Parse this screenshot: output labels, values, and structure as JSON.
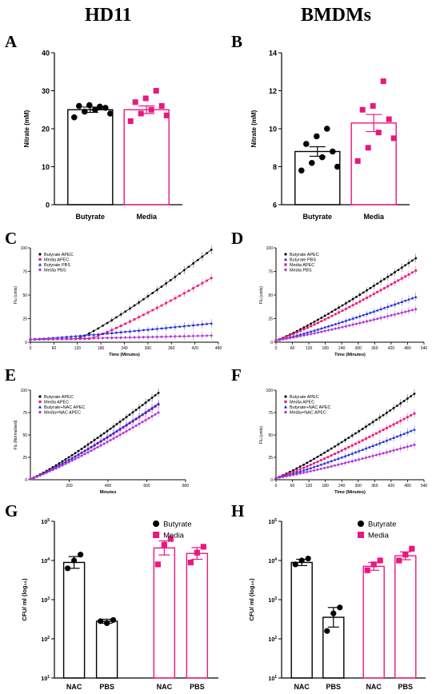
{
  "titles": {
    "left": "HD11",
    "right": "BMDMs"
  },
  "letters": {
    "A": "A",
    "B": "B",
    "C": "C",
    "D": "D",
    "E": "E",
    "F": "F",
    "G": "G",
    "H": "H"
  },
  "colors": {
    "butyrate": "#000000",
    "media": "#e8187f",
    "butyrate_pbs": "#1f2ad6",
    "media_pbs": "#b030d8"
  },
  "chart_data": [
    {
      "id": "A",
      "type": "bar",
      "ylabel": "Nitrate (mM)",
      "ylim": [
        0,
        40
      ],
      "yticks": [
        0,
        10,
        20,
        30,
        40
      ],
      "categories": [
        "Butyrate",
        "Media"
      ],
      "values": [
        25.0,
        25.0
      ],
      "sem": [
        0.7,
        1.0
      ],
      "points": [
        [
          23.0,
          24.5,
          25.0,
          25.5,
          26.0,
          26.2,
          25.8,
          24.0
        ],
        [
          22.0,
          24.0,
          25.0,
          26.0,
          27.0,
          28.0,
          30.0,
          23.5
        ]
      ]
    },
    {
      "id": "B",
      "type": "bar",
      "ylabel": "Nitrate (mM)",
      "ylim": [
        6,
        14
      ],
      "yticks": [
        6,
        8,
        10,
        12,
        14
      ],
      "categories": [
        "Butyrate",
        "Media"
      ],
      "values": [
        8.8,
        10.3
      ],
      "sem": [
        0.25,
        0.45
      ],
      "points": [
        [
          7.8,
          8.2,
          8.5,
          8.8,
          9.2,
          9.6,
          10.0,
          8.0
        ],
        [
          8.3,
          9.0,
          9.8,
          10.5,
          11.0,
          11.2,
          12.5,
          9.5
        ]
      ]
    },
    {
      "id": "C",
      "type": "line",
      "xlabel": "Time (Minutes)",
      "ylabel": "Flu (units)",
      "xlim": [
        0,
        480
      ],
      "xticks": [
        0,
        60,
        120,
        180,
        240,
        300,
        360,
        420,
        480
      ],
      "ylim": [
        0,
        100
      ],
      "yticks": [
        0,
        25,
        50,
        75,
        100
      ],
      "series": [
        {
          "name": "Butyrate APEC",
          "color": "#000000",
          "marker": "circle",
          "x0": 0,
          "x1": 462,
          "y0": 3,
          "y1": 98,
          "start": 120
        },
        {
          "name": "Media APEC",
          "color": "#e8187f",
          "marker": "square",
          "x0": 0,
          "x1": 462,
          "y0": 3,
          "y1": 68,
          "start": 150
        },
        {
          "name": "Butyrate PBS",
          "color": "#1f2ad6",
          "marker": "triangle",
          "x0": 0,
          "x1": 462,
          "y0": 3,
          "y1": 20,
          "start": 0
        },
        {
          "name": "Media PBS",
          "color": "#b030d8",
          "marker": "diamond",
          "x0": 0,
          "x1": 462,
          "y0": 3,
          "y1": 7,
          "start": 0
        }
      ]
    },
    {
      "id": "D",
      "type": "line",
      "xlabel": "Time (Minutes)",
      "ylabel": "Flu (units)",
      "xlim": [
        0,
        540
      ],
      "xticks": [
        0,
        60,
        120,
        180,
        240,
        300,
        360,
        420,
        480,
        540
      ],
      "ylim": [
        0,
        100
      ],
      "yticks": [
        0,
        25,
        50,
        75,
        100
      ],
      "series": [
        {
          "name": "Butyrate APEC",
          "color": "#000000",
          "marker": "circle",
          "x0": 0,
          "x1": 510,
          "y0": 2,
          "y1": 89,
          "start": 0
        },
        {
          "name": "Butyrate PBS",
          "color": "#1f2ad6",
          "marker": "triangle",
          "x0": 0,
          "x1": 510,
          "y0": 2,
          "y1": 48,
          "start": 0
        },
        {
          "name": "Media APEC",
          "color": "#e8187f",
          "marker": "square",
          "x0": 0,
          "x1": 510,
          "y0": 2,
          "y1": 76,
          "start": 0
        },
        {
          "name": "Media PBS",
          "color": "#b030d8",
          "marker": "diamond",
          "x0": 0,
          "x1": 510,
          "y0": 2,
          "y1": 35,
          "start": 0
        }
      ]
    },
    {
      "id": "E",
      "type": "line",
      "xlabel": "Minutes",
      "ylabel": "Flu (Normalised)",
      "xlim": [
        0,
        800
      ],
      "xticks": [
        200,
        400,
        600,
        800
      ],
      "ylim": [
        0,
        100
      ],
      "yticks": [
        0,
        25,
        50,
        75,
        100
      ],
      "series": [
        {
          "name": "Butyrate APEC",
          "color": "#000000",
          "marker": "circle",
          "x0": 0,
          "x1": 660,
          "y0": 1,
          "y1": 97,
          "start": 0
        },
        {
          "name": "Media APEC",
          "color": "#e8187f",
          "marker": "square",
          "x0": 0,
          "x1": 660,
          "y0": 1,
          "y1": 84,
          "start": 0
        },
        {
          "name": "Butyrate+NAC APEC",
          "color": "#1f2ad6",
          "marker": "triangle",
          "x0": 0,
          "x1": 660,
          "y0": 1,
          "y1": 85,
          "start": 0
        },
        {
          "name": "Media+NAC APEC",
          "color": "#b030d8",
          "marker": "diamond",
          "x0": 0,
          "x1": 660,
          "y0": 1,
          "y1": 75,
          "start": 0
        }
      ]
    },
    {
      "id": "F",
      "type": "line",
      "xlabel": "Time (Minutes)",
      "ylabel": "Flu (units)",
      "xlim": [
        0,
        540
      ],
      "xticks": [
        0,
        60,
        120,
        180,
        240,
        300,
        360,
        420,
        480,
        540
      ],
      "ylim": [
        0,
        100
      ],
      "yticks": [
        0,
        25,
        50,
        75,
        100
      ],
      "series": [
        {
          "name": "Butyrate APEC",
          "color": "#000000",
          "marker": "circle",
          "x0": 0,
          "x1": 505,
          "y0": 2,
          "y1": 96,
          "start": 0
        },
        {
          "name": "Media APEC",
          "color": "#e8187f",
          "marker": "square",
          "x0": 0,
          "x1": 505,
          "y0": 2,
          "y1": 74,
          "start": 0
        },
        {
          "name": "Butyrate+NAC APEC",
          "color": "#1f2ad6",
          "marker": "triangle",
          "x0": 0,
          "x1": 505,
          "y0": 2,
          "y1": 56,
          "start": 0
        },
        {
          "name": "Media+NAC APEC",
          "color": "#b030d8",
          "marker": "diamond",
          "x0": 0,
          "x1": 505,
          "y0": 2,
          "y1": 39,
          "start": 0
        }
      ]
    },
    {
      "id": "G",
      "type": "bar",
      "scale": "log",
      "ylabel": "CFU/ ml (log₁₀)",
      "yticks": [
        {
          "v": 1,
          "base": "10",
          "exp": "1"
        },
        {
          "v": 2,
          "base": "10",
          "exp": "2"
        },
        {
          "v": 3,
          "base": "10",
          "exp": "3"
        },
        {
          "v": 4,
          "base": "10",
          "exp": "4"
        },
        {
          "v": 5,
          "base": "10",
          "exp": "5"
        }
      ],
      "legend": [
        "Butyrate",
        "Media"
      ],
      "categories": [
        "NAC",
        "PBS",
        "NAC",
        "PBS"
      ],
      "groups": [
        "butyrate",
        "butyrate",
        "media",
        "media"
      ],
      "values_log10": [
        3.95,
        2.45,
        4.32,
        4.18
      ],
      "sem_log10": [
        0.15,
        0.05,
        0.18,
        0.15
      ],
      "points_log10": [
        [
          3.8,
          4.0,
          4.15
        ],
        [
          2.45,
          2.4,
          2.48
        ],
        [
          3.9,
          4.4,
          4.55
        ],
        [
          3.95,
          4.2,
          4.35
        ]
      ]
    },
    {
      "id": "H",
      "type": "bar",
      "scale": "log",
      "ylabel": "CFU/ ml (log₁₀)",
      "yticks": [
        {
          "v": 1,
          "base": "10",
          "exp": "1"
        },
        {
          "v": 2,
          "base": "10",
          "exp": "2"
        },
        {
          "v": 3,
          "base": "10",
          "exp": "3"
        },
        {
          "v": 4,
          "base": "10",
          "exp": "4"
        },
        {
          "v": 5,
          "base": "10",
          "exp": "5"
        }
      ],
      "legend": [
        "Butyrate",
        "Media"
      ],
      "categories": [
        "NAC",
        "PBS",
        "NAC",
        "PBS"
      ],
      "groups": [
        "butyrate",
        "butyrate",
        "media",
        "media"
      ],
      "values_log10": [
        3.95,
        2.55,
        3.85,
        4.12
      ],
      "sem_log10": [
        0.08,
        0.25,
        0.1,
        0.1
      ],
      "points_log10": [
        [
          3.9,
          4.0,
          4.05
        ],
        [
          2.2,
          2.65,
          2.8
        ],
        [
          3.75,
          3.9,
          4.0
        ],
        [
          4.0,
          4.15,
          4.3
        ]
      ]
    }
  ]
}
